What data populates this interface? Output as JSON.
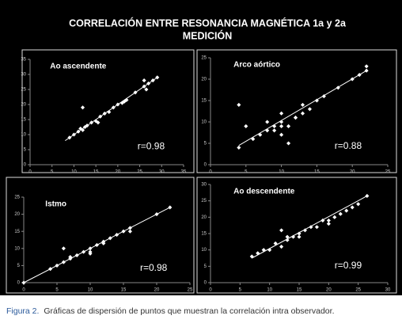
{
  "title": [
    "CORRELACIÓN ENTRE RESONANCIA MAGNÉTICA 1a y 2a",
    "MEDICIÓN"
  ],
  "caption": {
    "label": "Figura 2.",
    "text": "Gráficas de dispersión de puntos que muestran la correlación intra observador."
  },
  "chart_data": [
    {
      "type": "scatter",
      "title": "Ao ascendente",
      "annotation": "r=0.98",
      "color": "#ffffff",
      "x": [
        9,
        10,
        11,
        11.5,
        12,
        12,
        12.5,
        13,
        14,
        15,
        15.5,
        16,
        17,
        18,
        19,
        20,
        21,
        21.5,
        22,
        24,
        26,
        26,
        26.5,
        27,
        28,
        29
      ],
      "values": [
        9,
        10,
        11,
        12,
        11.5,
        19,
        12.5,
        13,
        14,
        14.5,
        14,
        16,
        17,
        17.5,
        19,
        20,
        20.5,
        21,
        21.5,
        24,
        26,
        28,
        25,
        27,
        28,
        29
      ],
      "trend": {
        "x": [
          8,
          29
        ],
        "y": [
          8,
          29
        ]
      },
      "xlim": [
        0,
        35
      ],
      "ylim": [
        0,
        35
      ],
      "xticks": [
        0,
        5,
        10,
        15,
        20,
        25,
        30,
        35
      ],
      "yticks": [
        0,
        5,
        10,
        15,
        20,
        25,
        30,
        35
      ]
    },
    {
      "type": "scatter",
      "title": "Arco aórtico",
      "annotation": "r=0.88",
      "color": "#ffffff",
      "x": [
        4,
        4,
        5,
        6,
        7,
        8,
        8,
        9,
        9,
        10,
        10,
        10,
        10,
        11,
        11,
        12,
        12,
        13,
        13,
        14,
        15,
        16,
        18,
        20,
        21,
        22,
        22
      ],
      "values": [
        14,
        4,
        9,
        6,
        7,
        10,
        8,
        8,
        9,
        7,
        9,
        10,
        12,
        5,
        9,
        11,
        11,
        12,
        14,
        13,
        15,
        16,
        18,
        20,
        21,
        22,
        23
      ],
      "trend": {
        "x": [
          4,
          22
        ],
        "y": [
          4.5,
          22
        ]
      },
      "xlim": [
        0,
        25
      ],
      "ylim": [
        0,
        25
      ],
      "xticks": [
        0,
        5,
        10,
        15,
        20,
        25
      ],
      "yticks": [
        0,
        5,
        10,
        15,
        20,
        25
      ]
    },
    {
      "type": "scatter",
      "title": "Istmo",
      "annotation": "r=0.98",
      "color": "#ffffff",
      "x": [
        0,
        4,
        5,
        6,
        6,
        7,
        7,
        8,
        9,
        10,
        10,
        10,
        11,
        12,
        12,
        13,
        14,
        15,
        16,
        16,
        20,
        22
      ],
      "values": [
        0,
        4,
        5,
        10,
        6,
        7,
        7.5,
        8,
        9,
        9,
        10,
        8.5,
        11,
        12,
        11.5,
        13,
        14,
        15,
        16,
        15,
        20,
        22
      ],
      "trend": {
        "x": [
          0,
          22
        ],
        "y": [
          0,
          22
        ]
      },
      "xlim": [
        0,
        25
      ],
      "ylim": [
        0,
        25
      ],
      "xticks": [
        0,
        5,
        10,
        15,
        20,
        25
      ],
      "yticks": [
        0,
        5,
        10,
        15,
        20,
        25
      ]
    },
    {
      "type": "scatter",
      "title": "Ao descendente",
      "annotation": "r=0.99",
      "color": "#ffffff",
      "x": [
        7,
        8,
        9,
        10,
        11,
        12,
        12,
        13,
        13,
        14,
        15,
        15,
        16,
        17,
        18,
        19,
        20,
        20,
        21,
        22,
        23,
        24,
        25,
        26.5
      ],
      "values": [
        8,
        9,
        10,
        10,
        12,
        16,
        11,
        13,
        14,
        14,
        15,
        14,
        16,
        17,
        17,
        19,
        19,
        18,
        20,
        21,
        22,
        23,
        24,
        26.5
      ],
      "trend": {
        "x": [
          7,
          26.5
        ],
        "y": [
          7.5,
          26.5
        ]
      },
      "xlim": [
        0,
        30
      ],
      "ylim": [
        0,
        30
      ],
      "xticks": [
        0,
        5,
        10,
        15,
        20,
        25,
        30
      ],
      "yticks": [
        0,
        5,
        10,
        15,
        20,
        25,
        30
      ]
    }
  ]
}
